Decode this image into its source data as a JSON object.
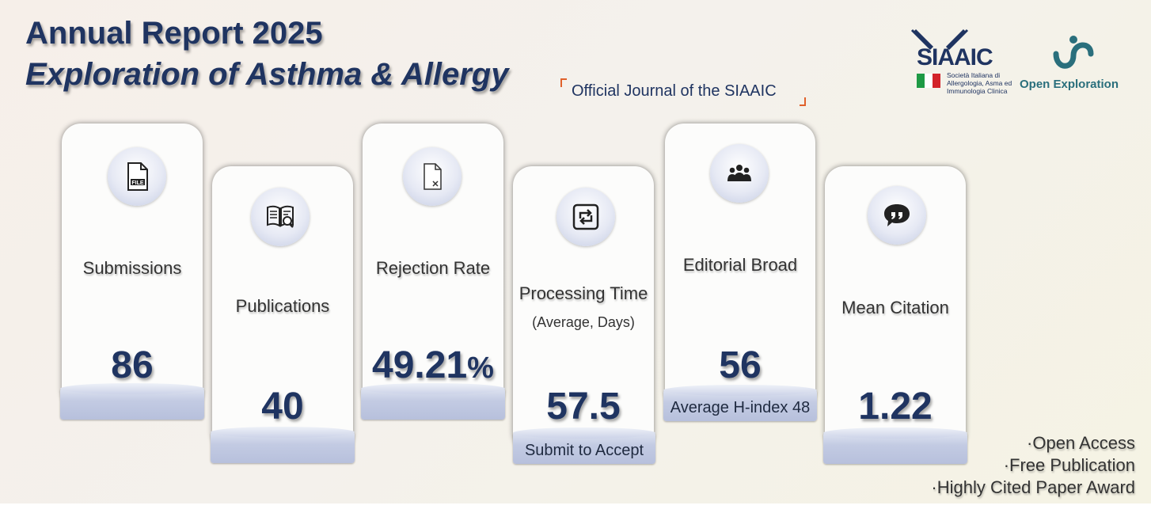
{
  "header": {
    "title": "Annual Report 2025",
    "journal": "Exploration of Asthma & Allergy",
    "tagline": "Official Journal of the SIAAIC"
  },
  "logos": {
    "siaaic": {
      "name": "SIAAIC",
      "subtitle": "Società Italiana di Allergologia, Asma ed Immunologia Clinica"
    },
    "open_exploration": {
      "name": "Open Exploration"
    }
  },
  "cards": [
    {
      "label": "Submissions",
      "value": "86",
      "icon": "file-icon"
    },
    {
      "label": "Publications",
      "value": "40",
      "icon": "book-search-icon"
    },
    {
      "label": "Rejection Rate",
      "value": "49.21",
      "unit": "%",
      "icon": "document-x-icon"
    },
    {
      "label": "Processing Time",
      "sublabel": "(Average, Days)",
      "value": "57.5",
      "note": "Submit to Accept",
      "icon": "cycle-icon"
    },
    {
      "label": "Editorial Broad",
      "value": "56",
      "note": "Average H-index 48",
      "icon": "group-icon"
    },
    {
      "label": "Mean Citation",
      "value": "1.22",
      "icon": "quote-icon"
    }
  ],
  "features": [
    "·Open Access",
    "·Free Publication",
    "·Highly Cited Paper Award"
  ],
  "colors": {
    "navy": "#1f3461",
    "accent_orange": "#e0612b",
    "teal": "#2a6f7c",
    "pedestal": "#c3cbe3"
  }
}
